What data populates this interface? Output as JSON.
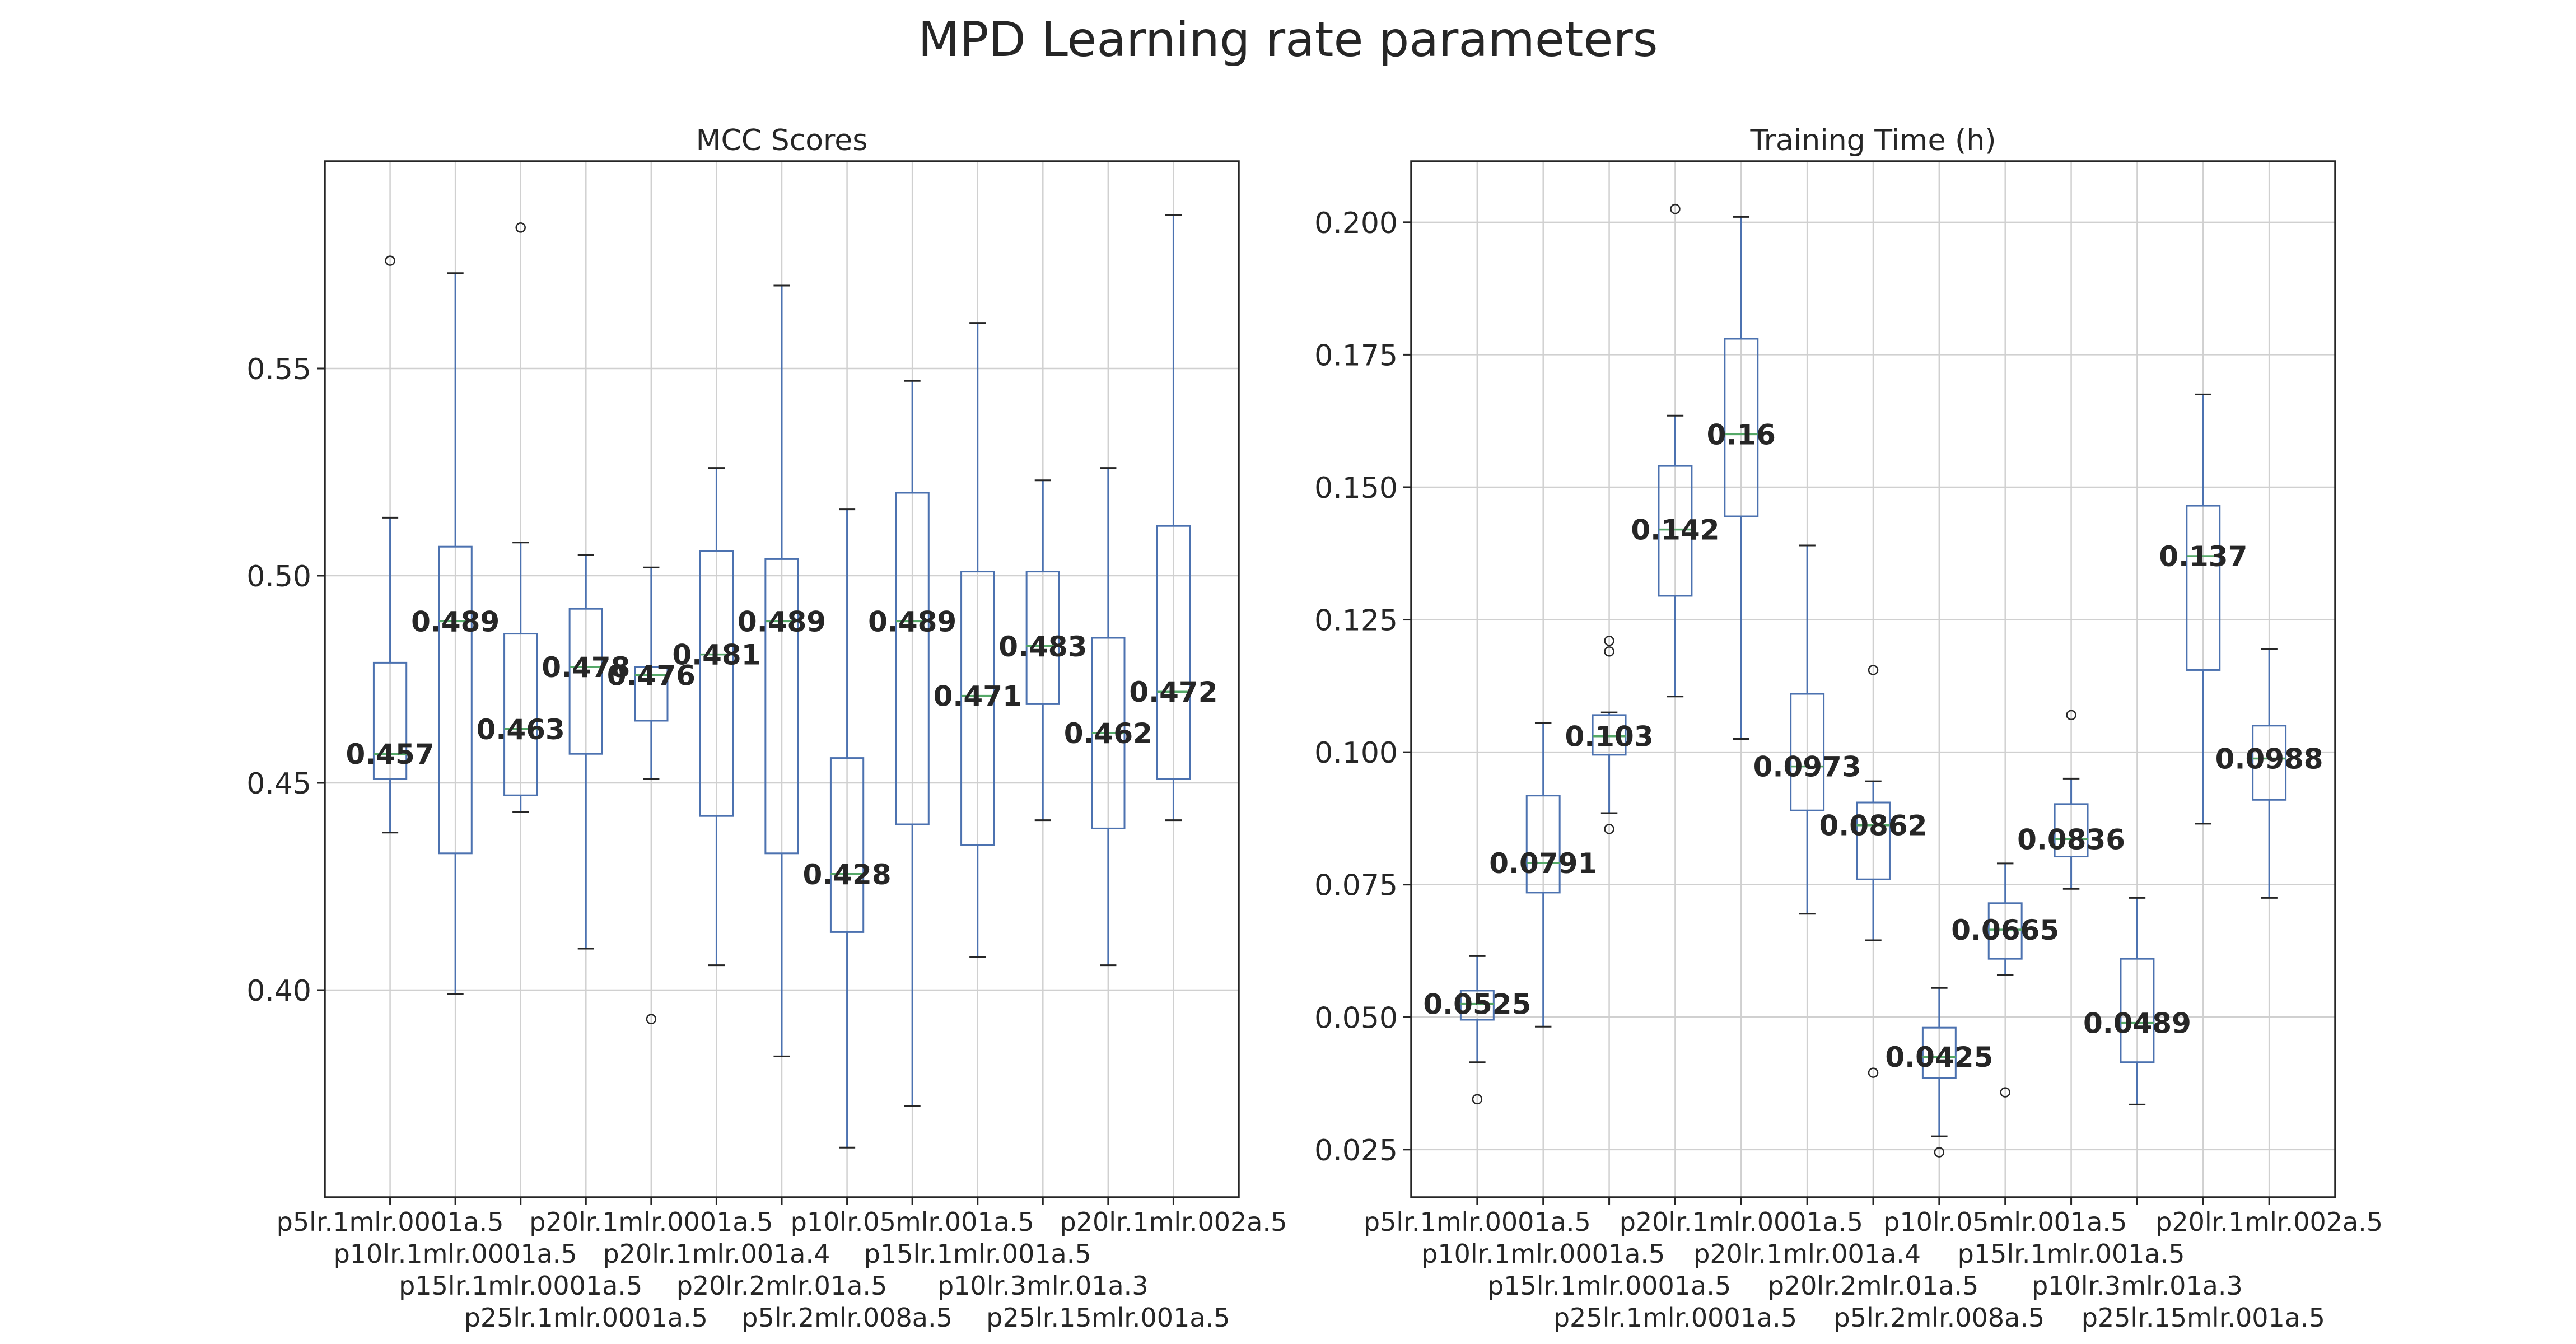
{
  "title": "MPD Learning rate parameters",
  "colors": {
    "box": "#4c72b0",
    "median": "#55a868",
    "whisker": "#4c72b0",
    "cap": "#262626",
    "grid": "#d0d0d0",
    "frame": "#262626"
  },
  "chart_data": [
    {
      "type": "box",
      "title": "MCC Scores",
      "xlabel": "",
      "ylabel": "",
      "ylim": [
        0.35,
        0.6
      ],
      "yticks": [
        0.4,
        0.45,
        0.5,
        0.55
      ],
      "ytick_labels": [
        "0.40",
        "0.45",
        "0.50",
        "0.55"
      ],
      "grid": true,
      "categories": [
        "p5lr.1mlr.0001a.5",
        "p10lr.1mlr.0001a.5",
        "p15lr.1mlr.0001a.5",
        "p25lr.1mlr.0001a.5",
        "p20lr.1mlr.0001a.5",
        "p20lr.1mlr.001a.4",
        "p20lr.2mlr.01a.5",
        "p5lr.2mlr.008a.5",
        "p10lr.05mlr.001a.5",
        "p15lr.1mlr.001a.5",
        "p10lr.3mlr.01a.3",
        "p25lr.15mlr.001a.5",
        "p20lr.1mlr.002a.5"
      ],
      "boxes": [
        {
          "whislo": 0.438,
          "q1": 0.451,
          "med": 0.457,
          "q3": 0.479,
          "whishi": 0.514,
          "fliers": [
            0.576
          ],
          "label": "0.457"
        },
        {
          "whislo": 0.399,
          "q1": 0.433,
          "med": 0.489,
          "q3": 0.507,
          "whishi": 0.573,
          "fliers": [],
          "label": "0.489"
        },
        {
          "whislo": 0.443,
          "q1": 0.447,
          "med": 0.463,
          "q3": 0.486,
          "whishi": 0.508,
          "fliers": [
            0.584
          ],
          "label": "0.463"
        },
        {
          "whislo": 0.41,
          "q1": 0.457,
          "med": 0.478,
          "q3": 0.492,
          "whishi": 0.505,
          "fliers": [],
          "label": "0.478"
        },
        {
          "whislo": 0.451,
          "q1": 0.465,
          "med": 0.476,
          "q3": 0.478,
          "whishi": 0.502,
          "fliers": [
            0.393
          ],
          "label": "0.476"
        },
        {
          "whislo": 0.406,
          "q1": 0.442,
          "med": 0.481,
          "q3": 0.506,
          "whishi": 0.526,
          "fliers": [],
          "label": "0.481"
        },
        {
          "whislo": 0.384,
          "q1": 0.433,
          "med": 0.489,
          "q3": 0.504,
          "whishi": 0.57,
          "fliers": [],
          "label": "0.489"
        },
        {
          "whislo": 0.362,
          "q1": 0.414,
          "med": 0.428,
          "q3": 0.456,
          "whishi": 0.516,
          "fliers": [],
          "label": "0.428"
        },
        {
          "whislo": 0.372,
          "q1": 0.44,
          "med": 0.489,
          "q3": 0.52,
          "whishi": 0.547,
          "fliers": [],
          "label": "0.489"
        },
        {
          "whislo": 0.408,
          "q1": 0.435,
          "med": 0.471,
          "q3": 0.501,
          "whishi": 0.561,
          "fliers": [],
          "label": "0.471"
        },
        {
          "whislo": 0.441,
          "q1": 0.469,
          "med": 0.483,
          "q3": 0.501,
          "whishi": 0.523,
          "fliers": [],
          "label": "0.483"
        },
        {
          "whislo": 0.406,
          "q1": 0.439,
          "med": 0.462,
          "q3": 0.485,
          "whishi": 0.526,
          "fliers": [],
          "label": "0.462"
        },
        {
          "whislo": 0.441,
          "q1": 0.451,
          "med": 0.472,
          "q3": 0.512,
          "whishi": 0.587,
          "fliers": [],
          "label": "0.472"
        }
      ]
    },
    {
      "type": "box",
      "title": "Training Time (h)",
      "xlabel": "",
      "ylabel": "",
      "ylim": [
        0.016,
        0.2115
      ],
      "yticks": [
        0.025,
        0.05,
        0.075,
        0.1,
        0.125,
        0.15,
        0.175,
        0.2
      ],
      "ytick_labels": [
        "0.025",
        "0.050",
        "0.075",
        "0.100",
        "0.125",
        "0.150",
        "0.175",
        "0.200"
      ],
      "grid": true,
      "categories": [
        "p5lr.1mlr.0001a.5",
        "p10lr.1mlr.0001a.5",
        "p15lr.1mlr.0001a.5",
        "p25lr.1mlr.0001a.5",
        "p20lr.1mlr.0001a.5",
        "p20lr.1mlr.001a.4",
        "p20lr.2mlr.01a.5",
        "p5lr.2mlr.008a.5",
        "p10lr.05mlr.001a.5",
        "p15lr.1mlr.001a.5",
        "p10lr.3mlr.01a.3",
        "p25lr.15mlr.001a.5",
        "p20lr.1mlr.002a.5"
      ],
      "boxes": [
        {
          "whislo": 0.0415,
          "q1": 0.0495,
          "med": 0.0525,
          "q3": 0.055,
          "whishi": 0.0615,
          "fliers": [
            0.0345
          ],
          "label": "0.0525"
        },
        {
          "whislo": 0.0482,
          "q1": 0.0735,
          "med": 0.0791,
          "q3": 0.0918,
          "whishi": 0.1055,
          "fliers": [],
          "label": "0.0791"
        },
        {
          "whislo": 0.0885,
          "q1": 0.0995,
          "med": 0.103,
          "q3": 0.107,
          "whishi": 0.1075,
          "fliers": [
            0.121,
            0.119,
            0.0855
          ],
          "label": "0.103"
        },
        {
          "whislo": 0.1105,
          "q1": 0.1295,
          "med": 0.142,
          "q3": 0.154,
          "whishi": 0.1635,
          "fliers": [
            0.2025
          ],
          "label": "0.142"
        },
        {
          "whislo": 0.1025,
          "q1": 0.1445,
          "med": 0.16,
          "q3": 0.178,
          "whishi": 0.201,
          "fliers": [],
          "label": "0.16"
        },
        {
          "whislo": 0.0695,
          "q1": 0.089,
          "med": 0.0973,
          "q3": 0.111,
          "whishi": 0.139,
          "fliers": [],
          "label": "0.0973"
        },
        {
          "whislo": 0.0645,
          "q1": 0.076,
          "med": 0.0862,
          "q3": 0.0905,
          "whishi": 0.0945,
          "fliers": [
            0.1155,
            0.0395
          ],
          "label": "0.0862"
        },
        {
          "whislo": 0.0275,
          "q1": 0.0385,
          "med": 0.0425,
          "q3": 0.048,
          "whishi": 0.0555,
          "fliers": [
            0.0245
          ],
          "label": "0.0425"
        },
        {
          "whislo": 0.058,
          "q1": 0.061,
          "med": 0.0665,
          "q3": 0.0715,
          "whishi": 0.079,
          "fliers": [
            0.0358
          ],
          "label": "0.0665"
        },
        {
          "whislo": 0.0742,
          "q1": 0.0803,
          "med": 0.0836,
          "q3": 0.0902,
          "whishi": 0.095,
          "fliers": [
            0.107
          ],
          "label": "0.0836"
        },
        {
          "whislo": 0.0335,
          "q1": 0.0415,
          "med": 0.0489,
          "q3": 0.061,
          "whishi": 0.0725,
          "fliers": [],
          "label": "0.0489"
        },
        {
          "whislo": 0.0865,
          "q1": 0.1155,
          "med": 0.137,
          "q3": 0.1465,
          "whishi": 0.1675,
          "fliers": [],
          "label": "0.137"
        },
        {
          "whislo": 0.0725,
          "q1": 0.091,
          "med": 0.0988,
          "q3": 0.105,
          "whishi": 0.1195,
          "fliers": [],
          "label": "0.0988"
        }
      ]
    }
  ]
}
